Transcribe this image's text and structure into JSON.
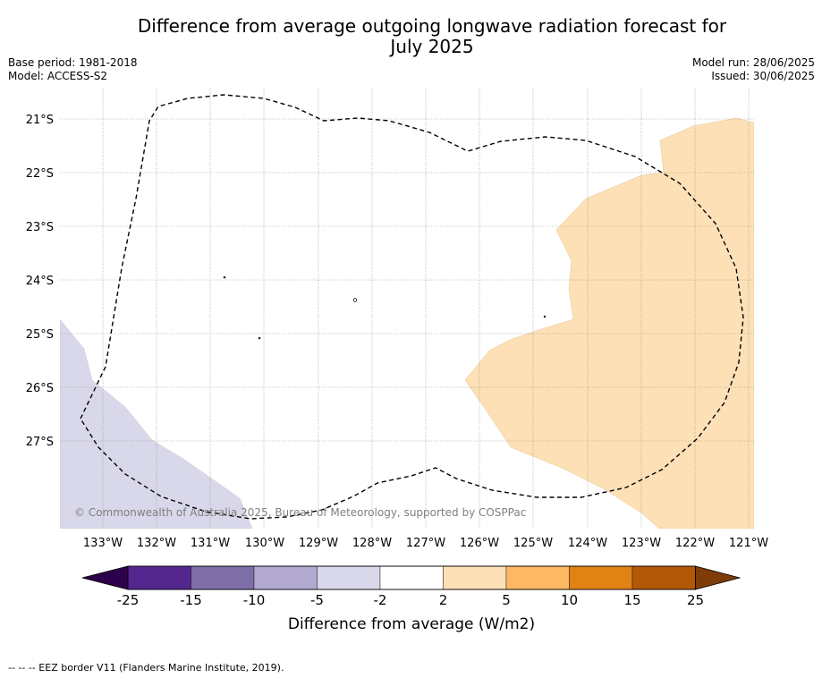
{
  "title_line1": "Difference from average outgoing longwave radiation forecast for",
  "title_line2": "July 2025",
  "base_period": "Base period: 1981-2018",
  "model": "Model: ACCESS-S2",
  "model_run": "Model run: 28/06/2025",
  "issued": "Issued: 30/06/2025",
  "copyright": "© Commonwealth of Australia 2025, Bureau of Meteorology, supported by COSPPac",
  "footer_note": "--  --  -- EEZ border V11 (Flanders Marine Institute, 2019).",
  "map": {
    "lon_labels": [
      "133°W",
      "132°W",
      "131°W",
      "130°W",
      "129°W",
      "128°W",
      "127°W",
      "126°W",
      "125°W",
      "124°W",
      "123°W",
      "122°W",
      "121°W"
    ],
    "lat_labels": [
      "21°S",
      "22°S",
      "23°S",
      "24°S",
      "25°S",
      "26°S",
      "27°S"
    ],
    "lon_range": [
      -133.8,
      -120.9
    ],
    "lat_range": [
      -28.6,
      -20.4
    ],
    "grid": true
  },
  "colorbar": {
    "label": "Difference from average (W/m2)",
    "tick_labels": [
      "-25",
      "-15",
      "-10",
      "-5",
      "-2",
      "2",
      "5",
      "10",
      "15",
      "25"
    ],
    "bins": [
      {
        "from": -25,
        "to": -15,
        "color": "#54278f"
      },
      {
        "from": -15,
        "to": -10,
        "color": "#7f6fa9"
      },
      {
        "from": -10,
        "to": -5,
        "color": "#b1a9d0"
      },
      {
        "from": -5,
        "to": -2,
        "color": "#d8d8ea"
      },
      {
        "from": -2,
        "to": 2,
        "color": "#ffffff"
      },
      {
        "from": 2,
        "to": 5,
        "color": "#fde0b6"
      },
      {
        "from": 5,
        "to": 10,
        "color": "#fdb863"
      },
      {
        "from": 10,
        "to": 15,
        "color": "#e08214"
      },
      {
        "from": 15,
        "to": 25,
        "color": "#b35806"
      }
    ],
    "extend_low_color": "#2d004b",
    "extend_high_color": "#7f3b08"
  },
  "legend_categories": {
    "light_purple": "-5 to -2",
    "light_orange": "2 to 5"
  },
  "colors": {
    "light_purple": "#d8d8ea",
    "light_orange": "#fde0b6",
    "grid": "#888888"
  }
}
